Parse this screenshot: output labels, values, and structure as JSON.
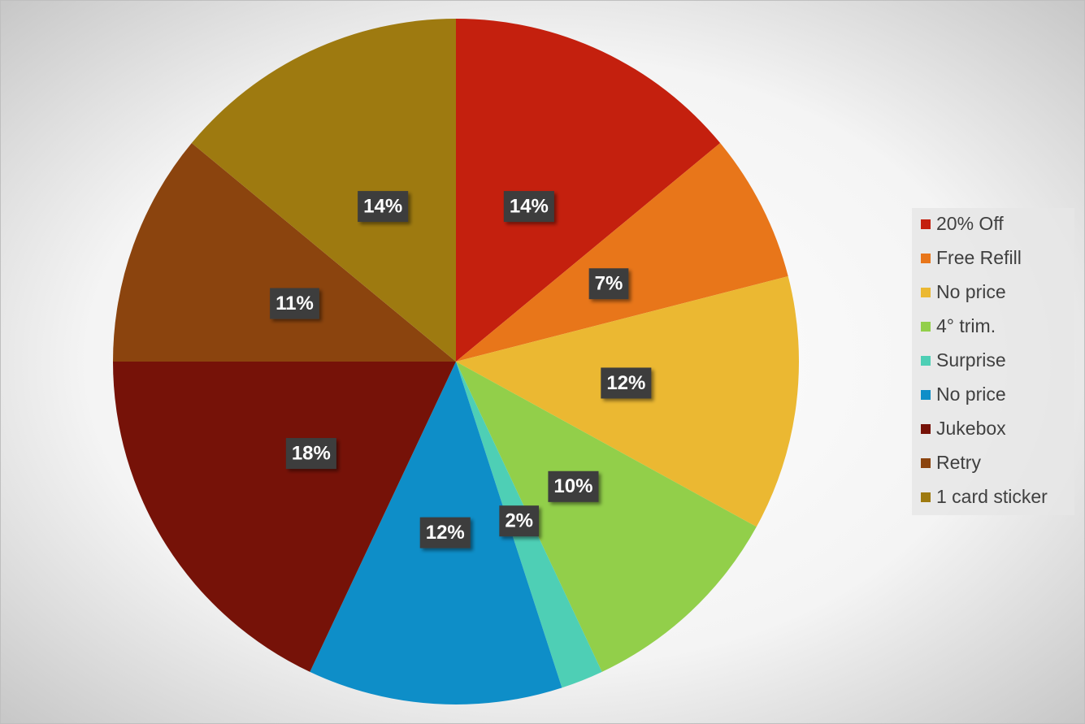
{
  "chart_data": {
    "type": "pie",
    "categories": [
      "20% Off",
      "Free Refill",
      "No price",
      "4° trim.",
      "Surprise",
      "No price",
      "Jukebox",
      "Retry",
      "1 card sticker"
    ],
    "values": [
      14,
      7,
      12,
      10,
      2,
      12,
      18,
      11,
      14
    ],
    "value_labels": [
      "14%",
      "7%",
      "12%",
      "10%",
      "2%",
      "12%",
      "18%",
      "11%",
      "14%"
    ],
    "colors": [
      "#c4200e",
      "#e8761a",
      "#ebb832",
      "#92cf4a",
      "#4ecfb5",
      "#0e8ec8",
      "#761208",
      "#8b440e",
      "#9e7a10"
    ],
    "legend": "right"
  }
}
